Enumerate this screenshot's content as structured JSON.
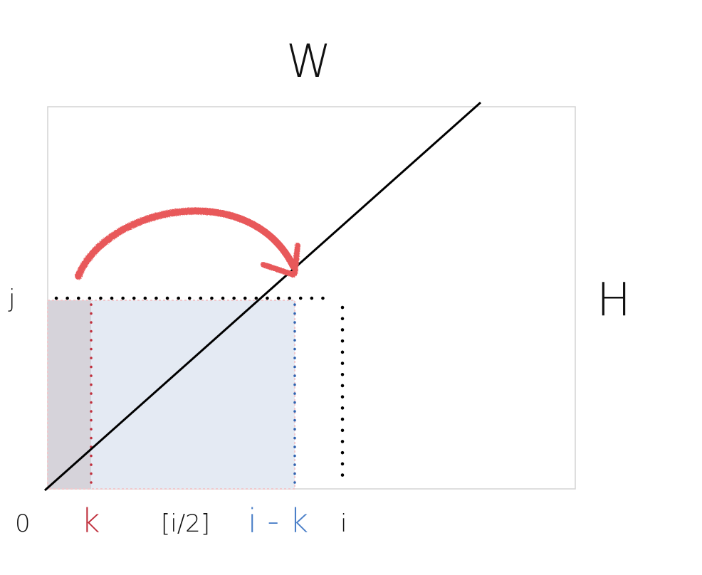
{
  "labels": {
    "width": "W",
    "height": "H",
    "row": "j",
    "origin": "0",
    "k": "k",
    "half": "[i/2]",
    "i_minus_k": "i - k",
    "i": "i"
  },
  "colors": {
    "frame": "#d3d3d3",
    "diagonal": "#000000",
    "k_accent": "#c0303d",
    "i_minus_k_accent": "#4a7fc8",
    "blue_region": "#e4eaf3",
    "gray_region": "#d6d3da",
    "arrow": "#e8585a",
    "dotted_black": "#000000"
  }
}
